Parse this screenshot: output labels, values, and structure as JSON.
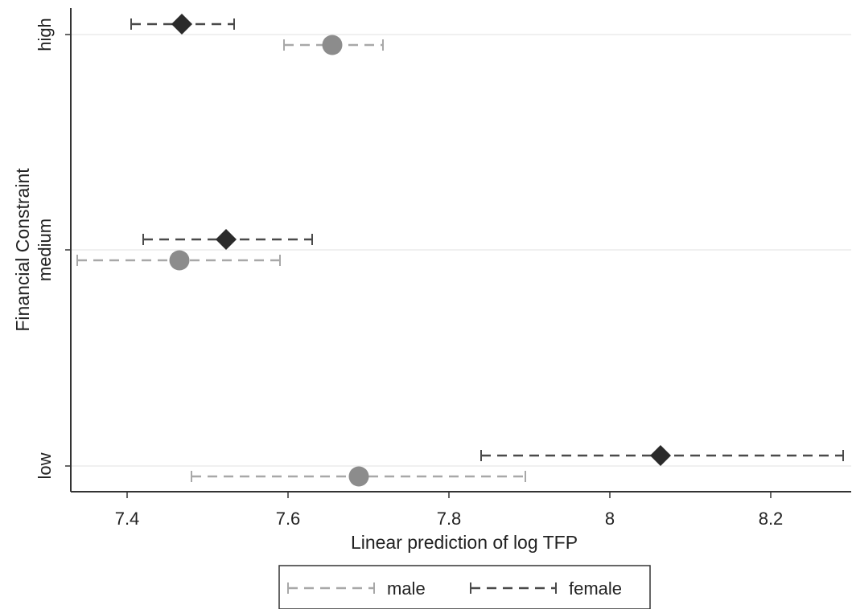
{
  "chart_data": {
    "type": "scatter",
    "subtype": "horizontal-point-with-error-bars",
    "xlabel": "Linear prediction of log TFP",
    "ylabel": "Financial Constraint",
    "xlim": [
      7.33,
      8.3
    ],
    "xticks": [
      7.4,
      7.6,
      7.8,
      8,
      8.2
    ],
    "xtick_labels": [
      "7.4",
      "7.6",
      "7.8",
      "8",
      "8.2"
    ],
    "categories": [
      "high",
      "medium",
      "low"
    ],
    "grid": "horizontal",
    "legend_position": "bottom",
    "series": [
      {
        "name": "male",
        "marker": "circle",
        "color": "#8c8c8c",
        "line_color": "#a8a8a8",
        "points": [
          {
            "category": "high",
            "x": 7.655,
            "ci": [
              7.595,
              7.718
            ]
          },
          {
            "category": "medium",
            "x": 7.465,
            "ci": [
              7.338,
              7.59
            ]
          },
          {
            "category": "low",
            "x": 7.688,
            "ci": [
              7.48,
              7.895
            ]
          }
        ]
      },
      {
        "name": "female",
        "marker": "diamond",
        "color": "#2b2b2b",
        "line_color": "#4a4a4a",
        "points": [
          {
            "category": "high",
            "x": 7.468,
            "ci": [
              7.405,
              7.533
            ]
          },
          {
            "category": "medium",
            "x": 7.523,
            "ci": [
              7.42,
              7.63
            ]
          },
          {
            "category": "low",
            "x": 8.063,
            "ci": [
              7.84,
              8.29
            ]
          }
        ]
      }
    ]
  }
}
